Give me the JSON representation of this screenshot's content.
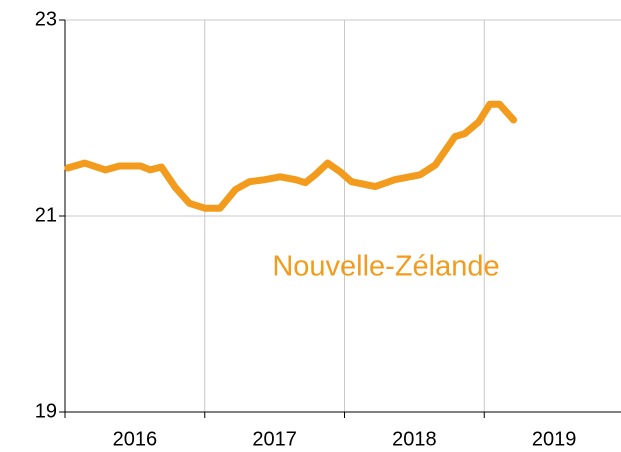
{
  "chart_data": {
    "type": "line",
    "x": [
      2016.02,
      2016.14,
      2016.29,
      2016.39,
      2016.54,
      2016.61,
      2016.69,
      2016.79,
      2016.89,
      2017.0,
      2017.11,
      2017.22,
      2017.32,
      2017.43,
      2017.54,
      2017.65,
      2017.72,
      2017.79,
      2017.88,
      2017.97,
      2018.05,
      2018.22,
      2018.36,
      2018.54,
      2018.65,
      2018.79,
      2018.86,
      2018.96,
      2019.04,
      2019.11,
      2019.21
    ],
    "series": [
      {
        "name": "Nouvelle-Zélande",
        "color": "#f29b1d",
        "values": [
          21.49,
          21.54,
          21.47,
          21.51,
          21.51,
          21.47,
          21.5,
          21.29,
          21.13,
          21.08,
          21.08,
          21.27,
          21.35,
          21.37,
          21.4,
          21.37,
          21.34,
          21.42,
          21.54,
          21.45,
          21.35,
          21.3,
          21.37,
          21.42,
          21.52,
          21.81,
          21.84,
          21.96,
          22.14,
          22.14,
          21.98
        ]
      }
    ],
    "xlim": [
      2016,
      2020
    ],
    "xticks": [
      2016,
      2017,
      2018,
      2019,
      2020
    ],
    "year_labels": [
      2016,
      2017,
      2018,
      2019
    ],
    "ylim": [
      19,
      23
    ],
    "yticks": [
      19,
      21,
      23
    ],
    "grid": true
  }
}
